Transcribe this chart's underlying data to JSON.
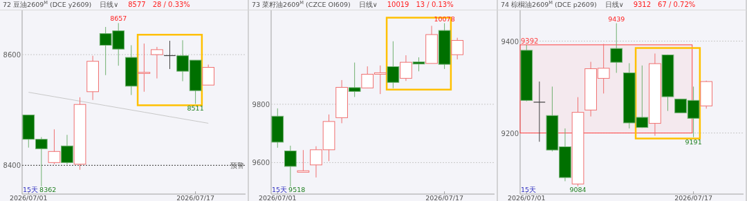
{
  "chart_data": [
    {
      "type": "candlestick",
      "title": "72 豆油2609$^{M}$ (DCE y2609)",
      "subtitle": "日线∨",
      "categories": [
        "2026/07/01",
        null,
        null,
        null,
        null,
        null,
        null,
        null,
        null,
        null,
        null,
        null,
        null,
        "2026/07/17",
        null
      ],
      "ohlc": [
        [
          8491,
          8491,
          8432,
          8447
        ],
        [
          8447,
          8451,
          8362,
          8430
        ],
        [
          8405,
          8465,
          8402,
          8425
        ],
        [
          8435,
          8455,
          8402,
          8405
        ],
        [
          8402,
          8523,
          8392,
          8510
        ],
        [
          8533,
          8598,
          8518,
          8588
        ],
        [
          8638,
          8650,
          8563,
          8617
        ],
        [
          8643,
          8657,
          8580,
          8610
        ],
        [
          8595,
          8617,
          8527,
          8543
        ],
        [
          8566,
          8620,
          8533,
          8568
        ],
        [
          8600,
          8614,
          8557,
          8609
        ],
        [
          8599,
          8625,
          8574,
          8599
        ],
        [
          8598,
          8626,
          8552,
          8570
        ],
        [
          8590,
          8590,
          8511,
          8535
        ],
        [
          8545,
          8582,
          8545,
          8577
        ]
      ],
      "series": [
        {
          "type": "line",
          "values": [
            8532,
            8528,
            8524,
            8520,
            8516,
            8512,
            8508,
            8504,
            8500,
            8496,
            8492,
            8488,
            8484,
            8480,
            8476
          ],
          "color": "#c8c8c8"
        }
      ],
      "ylim": [
        8348,
        8680
      ],
      "yticks": [
        8400,
        8600
      ],
      "grid": "y",
      "ref_lines": [
        {
          "axis": "y",
          "value": 8400,
          "label": "预警",
          "color": "#404040",
          "line_style": "dotted"
        }
      ],
      "annotations": [
        "8577",
        "28 / 0.33%",
        "15天",
        "8657",
        "8511",
        "8362"
      ]
    },
    {
      "type": "candlestick",
      "title": "73 菜籽油2609$^{M}$ (CZCE OI609)",
      "subtitle": "日线∨",
      "categories": [
        "2026/07/01",
        null,
        null,
        null,
        null,
        null,
        null,
        null,
        null,
        null,
        null,
        null,
        null,
        "2026/07/17",
        null
      ],
      "ohlc": [
        [
          9759,
          9786,
          9651,
          9670
        ],
        [
          9640,
          9658,
          9518,
          9587
        ],
        [
          9567,
          9643,
          9567,
          9572
        ],
        [
          9592,
          9656,
          9549,
          9644
        ],
        [
          9644,
          9765,
          9605,
          9741
        ],
        [
          9754,
          9883,
          9735,
          9858
        ],
        [
          9857,
          9943,
          9825,
          9844
        ],
        [
          9856,
          9930,
          9856,
          9903
        ],
        [
          9903,
          9933,
          9835,
          9908
        ],
        [
          9929,
          10016,
          9855,
          9875
        ],
        [
          9889,
          9968,
          9880,
          9944
        ],
        [
          9945,
          9961,
          9913,
          9938
        ],
        [
          9940,
          10069,
          9940,
          10039
        ],
        [
          10053,
          10078,
          9921,
          9937
        ],
        [
          9970,
          10028,
          9954,
          10019
        ]
      ],
      "ylim": [
        9492,
        10122
      ],
      "yticks": [
        9600,
        9800
      ],
      "grid": "y",
      "annotations": [
        "10019",
        "13 / 0.13%",
        "15天",
        "10078",
        "9518"
      ]
    },
    {
      "type": "candlestick",
      "title": "74 棕榈油2609$^{M}$ (DCE p2609)",
      "subtitle": "日线∨",
      "categories": [
        "2026/07/01",
        null,
        null,
        null,
        null,
        null,
        null,
        null,
        null,
        null,
        null,
        null,
        null,
        "2026/07/17",
        null
      ],
      "ohlc": [
        [
          9380,
          9392,
          9269,
          9271
        ],
        [
          9268,
          9312,
          9181,
          9268
        ],
        [
          9238,
          9301,
          9160,
          9163
        ],
        [
          9170,
          9210,
          9095,
          9103
        ],
        [
          9089,
          9278,
          9084,
          9245
        ],
        [
          9250,
          9355,
          9236,
          9340
        ],
        [
          9319,
          9394,
          9286,
          9341
        ],
        [
          9384,
          9439,
          9331,
          9354
        ],
        [
          9331,
          9352,
          9210,
          9222
        ],
        [
          9234,
          9347,
          9211,
          9212
        ],
        [
          9221,
          9373,
          9194,
          9351
        ],
        [
          9370,
          9371,
          9248,
          9279
        ],
        [
          9274,
          9274,
          9244,
          9244
        ],
        [
          9271,
          9301,
          9191,
          9232
        ],
        [
          9259,
          9314,
          9253,
          9312
        ]
      ],
      "ylim": [
        9067,
        9467
      ],
      "yticks": [
        9200,
        9400
      ],
      "grid": "y",
      "bands": [
        {
          "axis": "y",
          "from": 9200,
          "to": 9392,
          "label": "9392",
          "color": "#ff4040"
        }
      ],
      "annotations": [
        "9312",
        "67 / 0.72%",
        "15天",
        "9439",
        "9084",
        "9191"
      ]
    }
  ]
}
